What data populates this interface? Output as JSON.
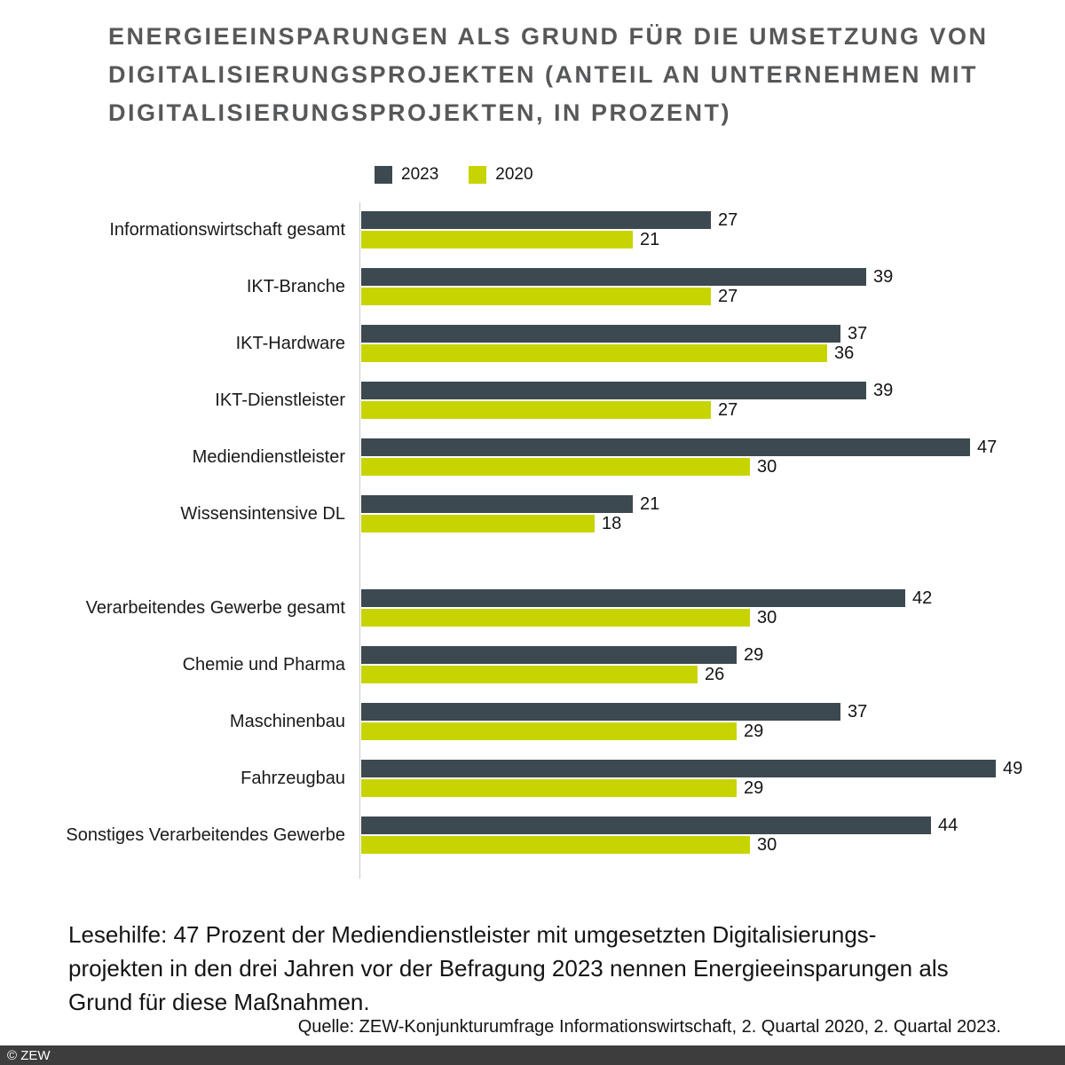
{
  "title": {
    "lines": [
      "ENERGIEEINSPARUNGEN ALS GRUND FÜR DIE UMSETZUNG VON",
      "DIGITALISIERUNGSPROJEKTEN (ANTEIL AN UNTERNEHMEN MIT",
      "DIGITALISIERUNGSPROJEKTEN, IN PROZENT)"
    ]
  },
  "legend": {
    "items": [
      {
        "label": "2023",
        "color": "#3d4950"
      },
      {
        "label": "2020",
        "color": "#c8d400"
      }
    ]
  },
  "chart_data": {
    "type": "bar",
    "orientation": "horizontal",
    "unit": "percent",
    "xlim": [
      0,
      49
    ],
    "grid": false,
    "legend_position": "top-center",
    "categories": [
      "Informationswirtschaft gesamt",
      "IKT-Branche",
      "IKT-Hardware",
      "IKT-Dienstleister",
      "Mediendienstleister",
      "Wissensintensive DL",
      "Verarbeitendes Gewerbe gesamt",
      "Chemie und Pharma",
      "Maschinenbau",
      "Fahrzeugbau",
      "Sonstiges Verarbeitendes Gewerbe"
    ],
    "series": [
      {
        "name": "2023",
        "color": "#3d4950",
        "values": [
          27,
          39,
          37,
          39,
          47,
          21,
          42,
          29,
          37,
          49,
          44
        ]
      },
      {
        "name": "2020",
        "color": "#c8d400",
        "values": [
          21,
          27,
          36,
          27,
          30,
          18,
          30,
          26,
          29,
          29,
          30
        ]
      }
    ],
    "group_break_before": "Verarbeitendes Gewerbe gesamt"
  },
  "lesehilfe": {
    "lines": [
      "Lesehilfe: 47 Prozent der Mediendienstleister mit umgesetzten Digitalisierungs-",
      "projekten in den drei Jahren vor der Befragung 2023 nennen Energieeinsparungen als",
      "Grund für diese Maßnahmen."
    ]
  },
  "quelle": "Quelle: ZEW-Konjunkturumfrage Informationswirtschaft, 2. Quartal 2020, 2. Quartal 2023.",
  "footer": {
    "copyright": "© ZEW"
  }
}
